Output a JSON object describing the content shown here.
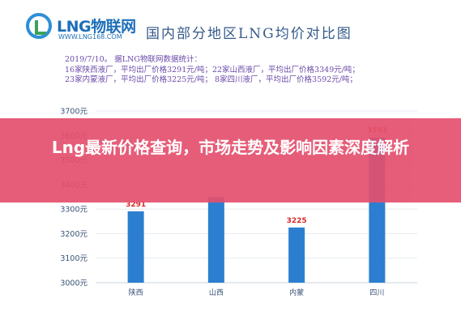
{
  "logo": {
    "name": "LNG物联网",
    "url": "WWW.LNG168.COM"
  },
  "header": {
    "title": "国内部分地区LNG均价对比图"
  },
  "stats_lines": [
    "2019/7/10。  据LNG物联网数据统计：",
    "16家陕西液厂，平均出厂价格3291元/吨；22家山西液厂，平均出厂价格3349元/吨；",
    "23家内蒙液厂，平均出厂价格3225元/吨；  8家四川液厂，平均出厂价格3592元/吨；"
  ],
  "chart_data": {
    "type": "bar",
    "categories": [
      "陕西",
      "山西",
      "内蒙",
      "四川"
    ],
    "values": [
      3291,
      3349,
      3225,
      3592
    ],
    "data_labels": [
      "3291",
      "",
      "3225",
      "3592"
    ],
    "yticks": [
      "3000元",
      "3100元",
      "3200元",
      "3300元",
      "3400元",
      "3500元",
      "3600元",
      "3700元"
    ],
    "ylim": [
      3000,
      3700
    ],
    "title": "",
    "xlabel": "",
    "ylabel": "",
    "grid": true,
    "bar_color": "#2c7fd0",
    "label_color": "#d42a2a"
  },
  "banner": {
    "headline": "Lng最新价格查询，市场走势及影响因素深度解析",
    "color": "#e4506e"
  }
}
